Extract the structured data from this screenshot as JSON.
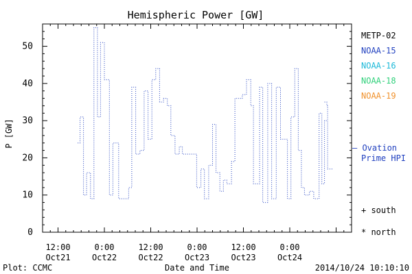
{
  "chart_data": {
    "type": "line",
    "title": "Hemispheric Power [GW]",
    "ylabel": "P [GW]",
    "xlabel": "Date and Time",
    "ylim": [
      0,
      56
    ],
    "y_ticks": [
      0,
      10,
      20,
      30,
      40,
      50
    ],
    "x_range_hours": [
      -16,
      64
    ],
    "x_ticks": [
      {
        "hour": -12,
        "line1": "12:00",
        "line2": "Oct21"
      },
      {
        "hour": 0,
        "line1": "0:00",
        "line2": "Oct22"
      },
      {
        "hour": 12,
        "line1": "12:00",
        "line2": "Oct22"
      },
      {
        "hour": 24,
        "line1": "0:00",
        "line2": "Oct23"
      },
      {
        "hour": 36,
        "line1": "12:00",
        "line2": "Oct23"
      },
      {
        "hour": 48,
        "line1": "0:00",
        "line2": "Oct24"
      }
    ],
    "grid": false,
    "legend_position": "right",
    "legend": [
      {
        "label": "METP-02",
        "color": "#000000"
      },
      {
        "label": "NOAA-15",
        "color": "#1f3fbf"
      },
      {
        "label": "NOAA-16",
        "color": "#19b8d8"
      },
      {
        "label": "NOAA-18",
        "color": "#2fd07a"
      },
      {
        "label": "NOAA-19",
        "color": "#f0902a"
      }
    ],
    "series": [
      {
        "name": "NOAA-15",
        "color": "#1f3fbf",
        "style": "step-dotted",
        "x": [
          -6.9,
          -6.3,
          -5.4,
          -4.6,
          -3.6,
          -2.7,
          -1.8,
          -1.0,
          0.0,
          1.3,
          2.2,
          3.7,
          4.6,
          6.3,
          7.1,
          8.1,
          9.2,
          10.3,
          11.3,
          12.3,
          13.3,
          14.3,
          15.3,
          16.3,
          17.2,
          18.3,
          19.4,
          20.2,
          21.1,
          22.0,
          23.0,
          23.9,
          25.0,
          25.9,
          27.0,
          28.0,
          28.9,
          29.9,
          30.8,
          31.7,
          32.9,
          33.8,
          34.8,
          35.7,
          36.8,
          37.9,
          38.6,
          40.2,
          41.0,
          42.3,
          43.3,
          44.5,
          45.6,
          47.4,
          48.3,
          49.3,
          50.2,
          51.0,
          51.8,
          53.1,
          54.2,
          55.6,
          56.3,
          57.0
        ],
        "y": [
          24,
          31,
          10,
          16,
          9,
          55,
          31,
          51,
          41,
          10,
          24,
          9,
          9,
          12,
          39,
          21,
          22,
          38,
          25,
          41,
          44,
          35,
          36,
          34,
          26,
          21,
          23,
          21,
          21,
          21,
          21,
          12,
          17,
          9,
          18,
          29,
          16,
          11,
          14,
          13,
          19,
          36,
          36,
          37,
          41,
          34,
          13,
          39,
          8,
          40,
          9,
          39,
          25,
          9,
          31,
          44,
          22,
          12,
          10,
          11,
          9,
          32,
          13,
          30
        ]
      },
      {
        "name": "Ovation Prime HPI",
        "color": "#1f3fbf",
        "style": "dotted",
        "x": [
          57.0,
          57.6,
          57.8,
          58.3
        ],
        "y": [
          35,
          34,
          17,
          17
        ]
      }
    ],
    "annotations": [
      {
        "text": "— Ovation",
        "line2": "Prime HPI",
        "color": "#1f3fbf"
      },
      {
        "text": "+ south",
        "color": "#000000"
      },
      {
        "text": "* north",
        "color": "#000000"
      }
    ]
  },
  "footer": {
    "left": "Plot: CCMC",
    "right": "2014/10/24 10:10:10"
  }
}
